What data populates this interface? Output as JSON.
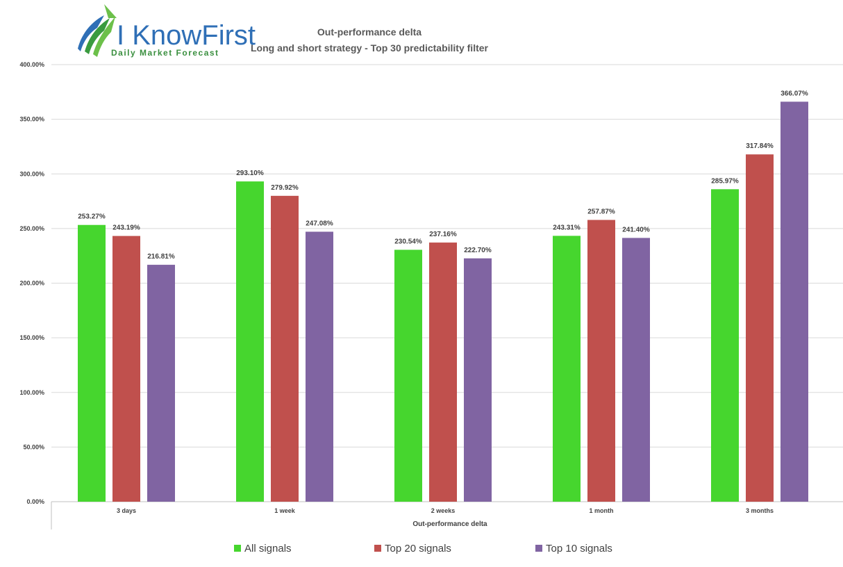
{
  "logo": {
    "brand": "I KnowFirst",
    "tagline": "Daily Market Forecast"
  },
  "colors": {
    "background": "#ffffff",
    "gridline": "#d9d9d9",
    "axis": "#bfbfbf",
    "text": "#404040"
  },
  "chart_data": {
    "type": "bar",
    "title": "Out-performance delta",
    "subtitle": "Long and short strategy - Top 30 predictability filter",
    "xlabel": "Out-performance delta",
    "ylabel": "",
    "categories": [
      "3 days",
      "1 week",
      "2 weeks",
      "1 month",
      "3 months"
    ],
    "series": [
      {
        "name": "All signals",
        "color": "#46d62e",
        "values": [
          253.27,
          293.1,
          230.54,
          243.31,
          285.97
        ],
        "labels": [
          "253.27%",
          "293.10%",
          "230.54%",
          "243.31%",
          "285.97%"
        ]
      },
      {
        "name": "Top 20 signals",
        "color": "#c0504d",
        "values": [
          243.19,
          279.92,
          237.16,
          257.87,
          317.84
        ],
        "labels": [
          "243.19%",
          "279.92%",
          "237.16%",
          "257.87%",
          "317.84%"
        ]
      },
      {
        "name": "Top 10 signals",
        "color": "#8064a2",
        "values": [
          216.81,
          247.08,
          222.7,
          241.4,
          366.07
        ],
        "labels": [
          "216.81%",
          "247.08%",
          "222.70%",
          "241.40%",
          "366.07%"
        ]
      }
    ],
    "ylim": [
      0,
      400
    ],
    "yticks": [
      0,
      50,
      100,
      150,
      200,
      250,
      300,
      350,
      400
    ],
    "ytick_labels": [
      "0.00%",
      "50.00%",
      "100.00%",
      "150.00%",
      "200.00%",
      "250.00%",
      "300.00%",
      "350.00%",
      "400.00%"
    ],
    "grid": true,
    "legend_position": "bottom"
  }
}
